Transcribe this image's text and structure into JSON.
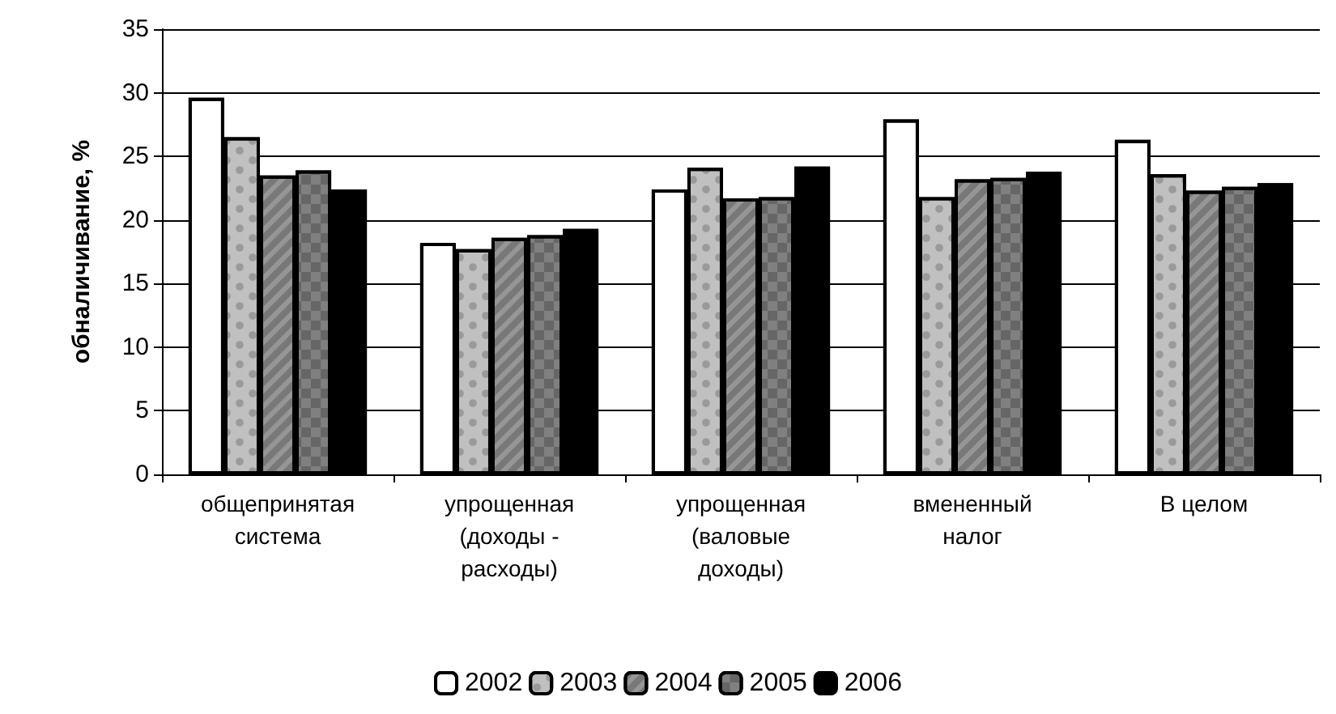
{
  "chart_data": {
    "type": "bar",
    "ylabel": "обналичивание, %",
    "categories": [
      "общепринятая\nсистема",
      "упрощенная\n(доходы -\nрасходы)",
      "упрощенная\n(валовые\nдоходы)",
      "вмененный\nналог",
      "В целом"
    ],
    "series": [
      {
        "name": "2002",
        "color": "#ffffff",
        "values": [
          29.6,
          18.2,
          22.4,
          27.9,
          26.3
        ]
      },
      {
        "name": "2003",
        "color": "#c0c0c0",
        "values": [
          26.5,
          17.7,
          24.1,
          21.8,
          23.6
        ]
      },
      {
        "name": "2004",
        "color": "#969696",
        "values": [
          23.5,
          18.6,
          21.7,
          23.2,
          22.3
        ]
      },
      {
        "name": "2005",
        "color": "#808080",
        "values": [
          23.9,
          18.8,
          21.8,
          23.3,
          22.6
        ]
      },
      {
        "name": "2006",
        "color": "#000000",
        "values": [
          22.4,
          19.3,
          24.2,
          23.8,
          22.9
        ]
      }
    ],
    "ylim": [
      0,
      35
    ],
    "yticks": [
      0,
      5,
      10,
      15,
      20,
      25,
      30,
      35
    ],
    "grid": "y",
    "legend": "bottom"
  }
}
